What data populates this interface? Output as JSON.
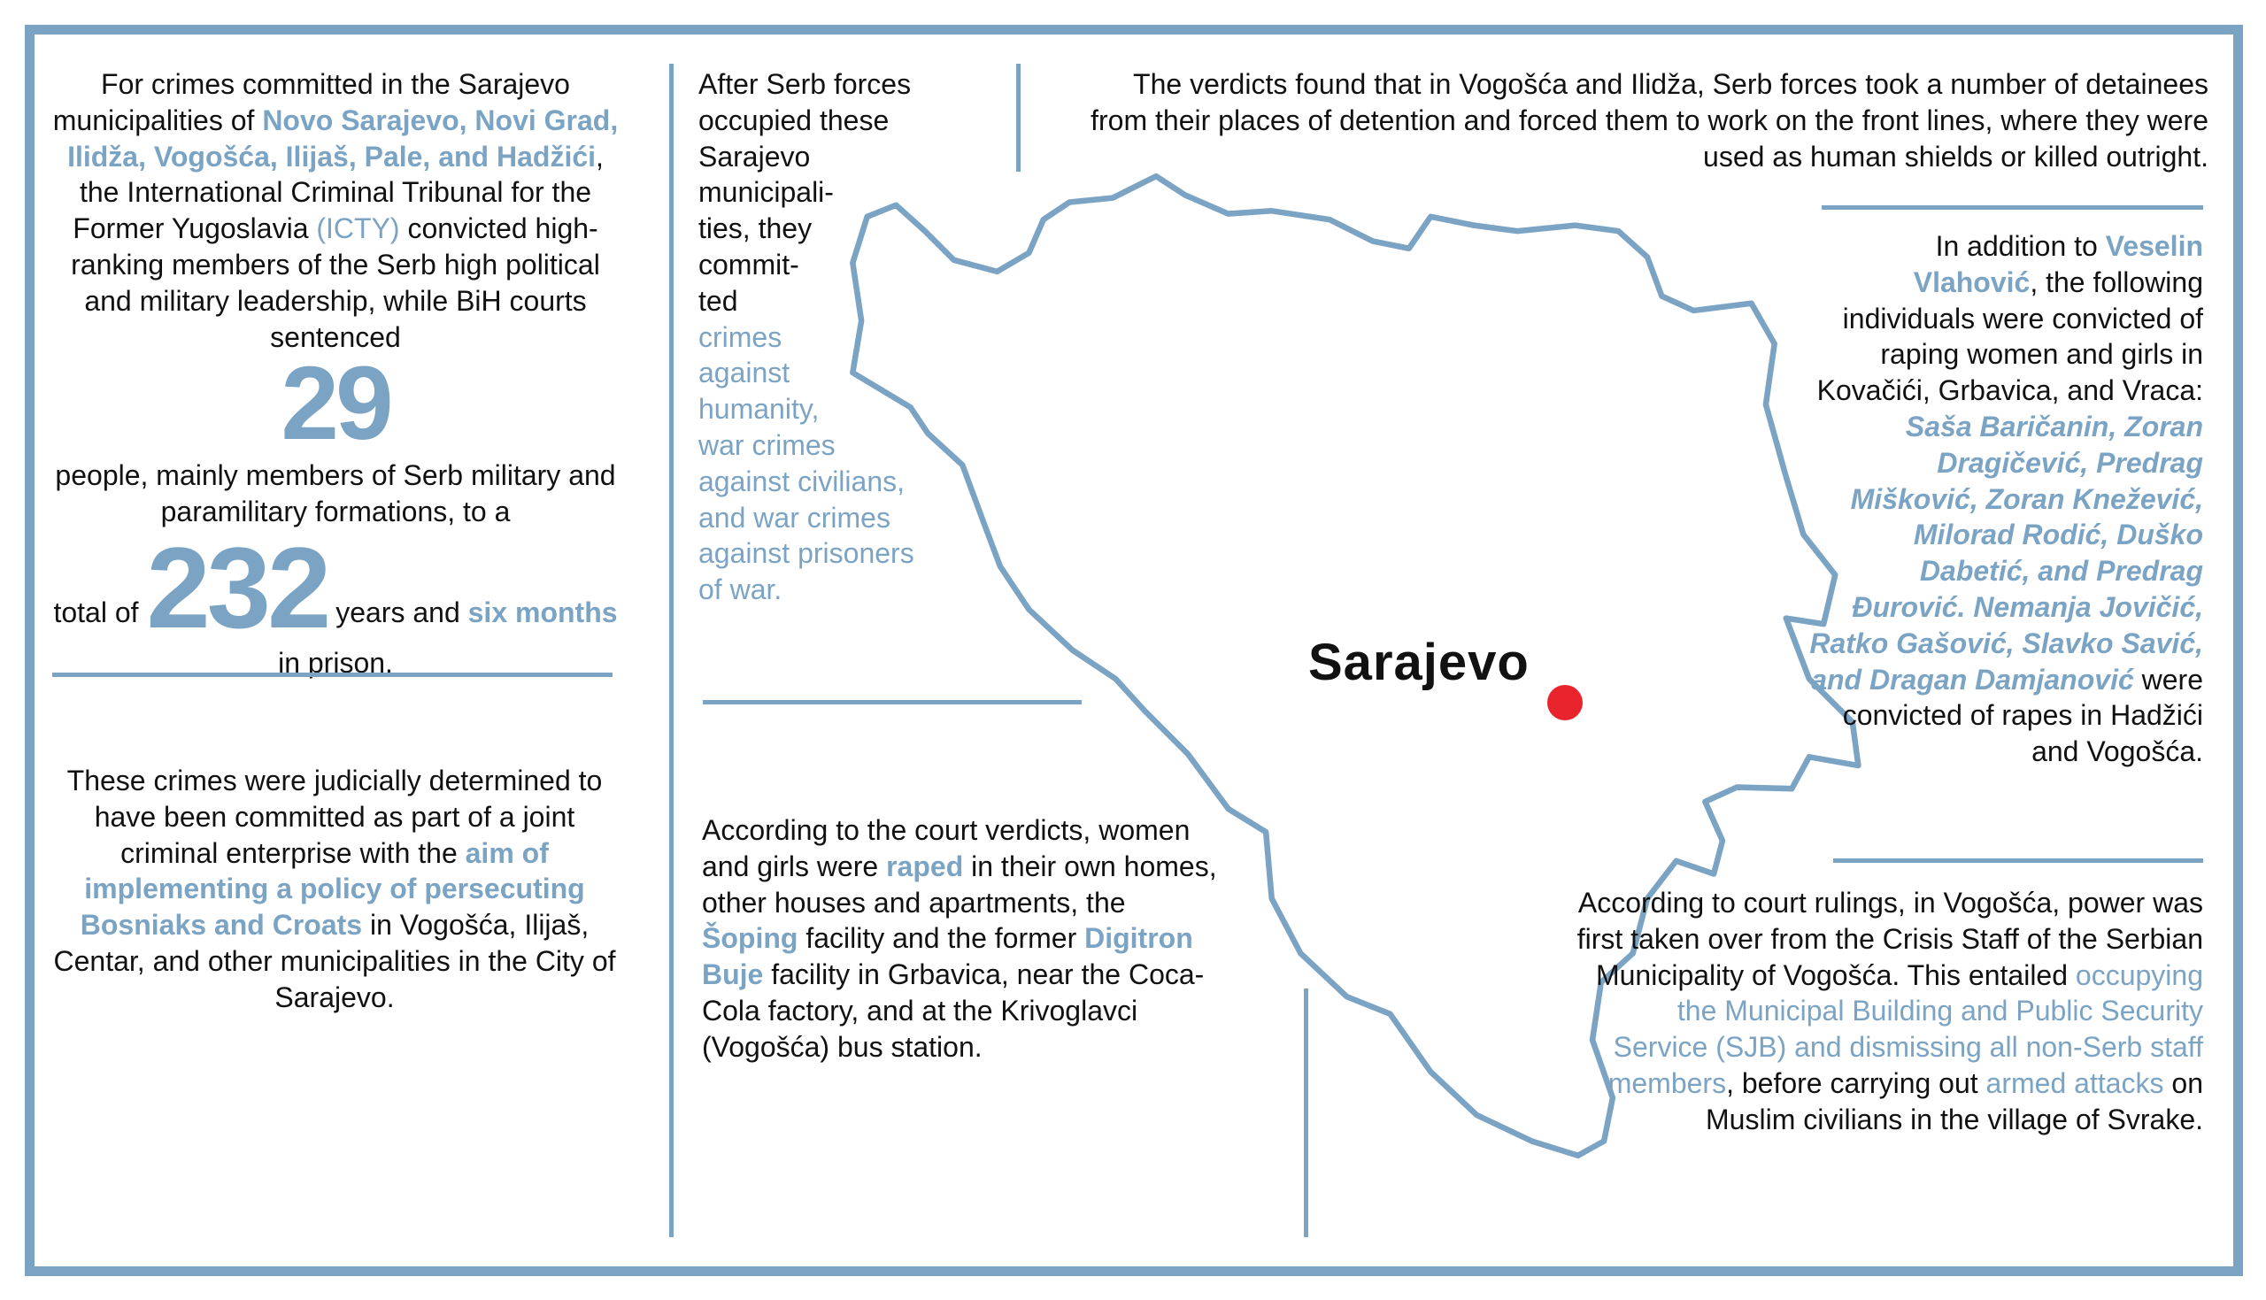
{
  "accent_color": "#7ba3c4",
  "marker_color": "#e8232b",
  "left_top": {
    "a": "For crimes committed in the Sarajevo municipalities of ",
    "hl1": "Novo Sarajevo, Novi Grad, Ilidža, Vogošća, Ilijaš, Pale, and Hadžići",
    "b": ", the International Criminal Tribunal for the Former Yugoslavia ",
    "hl2": "(ICTY)",
    "c": " convicted high-ranking members of the Serb high political and military leadership, while BiH courts sentenced",
    "num1": "29",
    "d": "people, mainly members of Serb military and paramilitary formations, to a",
    "e": "total of ",
    "num2": "232",
    "f": " years and ",
    "hl3": "six months",
    "g": " in prison."
  },
  "left_bottom": {
    "a": "These crimes were judicially determined to have been committed as part of a joint criminal enterprise with the ",
    "hl": "aim of implementing a policy of persecuting Bosniaks and Croats",
    "b": " in Vogošća, Ilijaš, Centar, and other municipalities in the City of Sarajevo."
  },
  "middle_top": {
    "lines": [
      "After Serb forces",
      "occupied these",
      "Sarajevo",
      "municipali-",
      "ties, they",
      "commit-",
      "ted"
    ],
    "hl_lines": [
      "crimes",
      "against",
      "humanity,",
      "war crimes",
      "against civilians,",
      "and war crimes",
      "against prisoners",
      "of war."
    ]
  },
  "middle_bottom": {
    "a": "According to the court verdicts, women and girls were ",
    "hl1": "raped",
    "b": " in their own homes, other houses and apartments, the ",
    "hl2": "Šoping",
    "c": " facility and the former ",
    "hl3": "Digitron Buje",
    "d": " facility in Grbavica, near the Coca-Cola factory, and at the Krivoglavci (Vogošća) bus station."
  },
  "top_right": {
    "text": "The verdicts found that in Vogošća and Ilidža, Serb forces took a number of detainees from their places of detention and forced them to work on the front lines, where they were used as human shields or killed outright."
  },
  "right_middle": {
    "a": "In addition to ",
    "hl1": "Veselin Vlahović",
    "b": ", the following individuals were convicted of raping women and girls in Kovačići, Grbavica, and Vraca: ",
    "hl2": "Saša Baričanin, Zoran Dragičević, Predrag Mišković, Zoran Knežević, Milorad Rodić, Duško Dabetić, and Predrag Đurović. Nemanja Jovičić, Ratko Gašović, Slavko Savić, and Dragan Damjanović",
    "c": " were convicted of rapes in Hadžići and Vogošća."
  },
  "right_bottom": {
    "a": "According to court rulings, in Vogošća, power was first taken over from the Crisis Staff of the Serbian Municipality of Vogošća. This entailed ",
    "hl1": "occupying the Municipal Building and Public Security Service (SJB) and dismissing all non-Serb staff members",
    "b": ", before carrying out ",
    "hl2": "armed attacks",
    "c": " on Muslim civilians in the village of Svrake."
  },
  "map": {
    "city_label": "Sarajevo",
    "icon": "bosnia-outline-map"
  }
}
